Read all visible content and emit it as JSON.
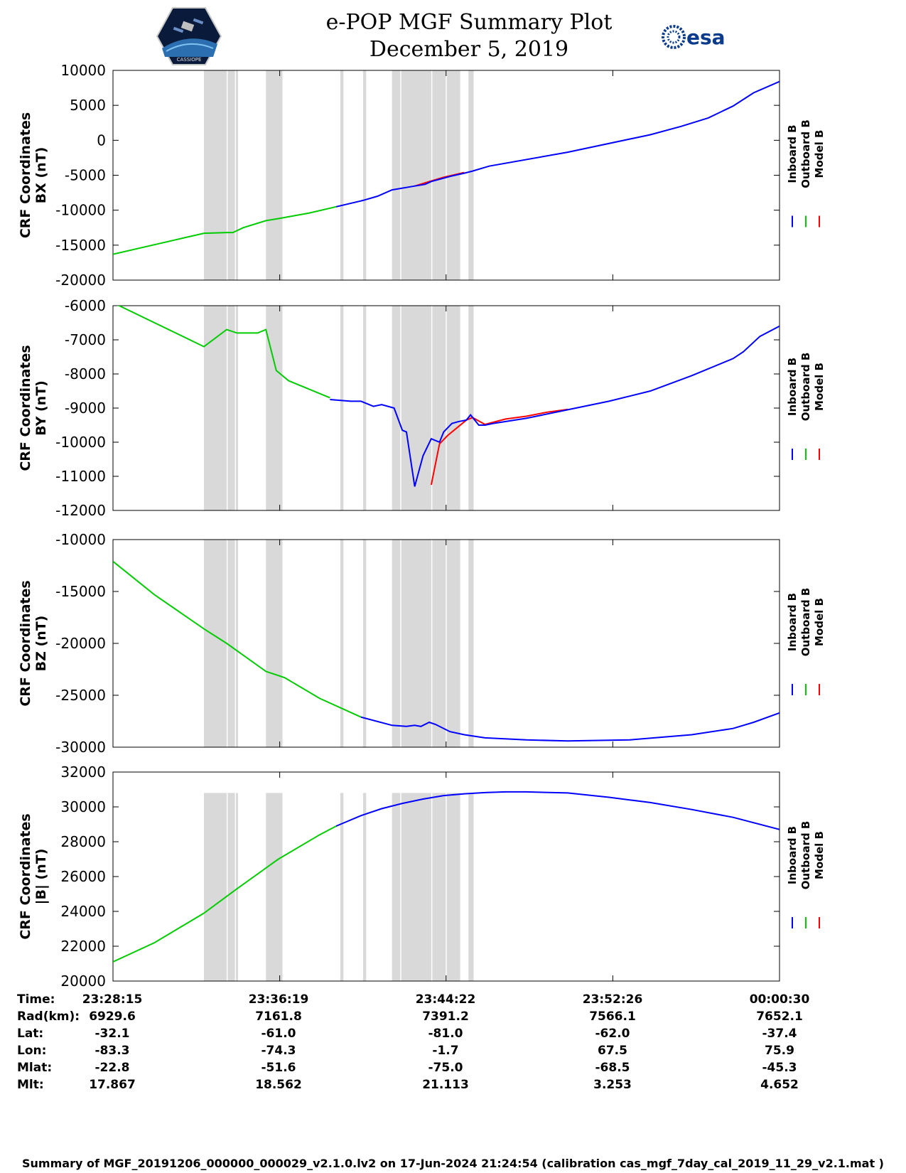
{
  "header": {
    "title_line1": "e-POP MGF Summary Plot",
    "title_line2": "December 5, 2019",
    "logo_left_text": "CASSIOPE",
    "logo_right_text": "esa"
  },
  "legend": [
    "Inboard B",
    "Outboard B",
    "Model B"
  ],
  "colors": {
    "inboard": "#0000ff",
    "outboard": "#00cc00",
    "model": "#ff0000",
    "data_gap": "#d9d9d9"
  },
  "x_axis": {
    "range_minutes": [
      0,
      32.25
    ],
    "tick_minutes": [
      0,
      8.067,
      16.117,
      24.183,
      32.25
    ]
  },
  "table": {
    "row_labels": [
      "Time:",
      "Rad(km):",
      "Lat:",
      "Lon:",
      "Mlat:",
      "Mlt:"
    ],
    "columns": [
      [
        "23:28:15",
        "6929.6",
        "-32.1",
        "-83.3",
        "-22.8",
        "17.867"
      ],
      [
        "23:36:19",
        "7161.8",
        "-61.0",
        "-74.3",
        "-51.6",
        "18.562"
      ],
      [
        "23:44:22",
        "7391.2",
        "-81.0",
        "-1.7",
        "-75.0",
        "21.113"
      ],
      [
        "23:52:26",
        "7566.1",
        "-62.0",
        "67.5",
        "-68.5",
        "3.253"
      ],
      [
        "00:00:30",
        "7652.1",
        "-37.4",
        "75.9",
        "-45.3",
        "4.652"
      ]
    ]
  },
  "footer": "Summary of MGF_20191206_000000_000029_v2.1.0.lv2 on 17-Jun-2024 21:24:54 (calibration cas_mgf_7day_cal_2019_11_29_v2.1.mat )",
  "chart_data": [
    {
      "type": "line",
      "title": "",
      "ylabel": "CRF Coordinates\nBX (nT)",
      "ylabel_lines": [
        "CRF Coordinates",
        "BX (nT)"
      ],
      "ylim": [
        -20000,
        10000
      ],
      "yticks": [
        10000,
        5000,
        0,
        -5000,
        -10000,
        -15000,
        -20000
      ],
      "ytick_labels": [
        "10000",
        "5000",
        "0",
        "-5000",
        "-10000",
        "-15000",
        "-20000"
      ],
      "gap_top": 10000,
      "outboard": {
        "x": [
          0,
          4.4,
          5.5,
          5.8,
          6.3,
          7.4,
          8.0,
          9.5,
          10.8
        ],
        "y": [
          -16300,
          -13300,
          -13200,
          -13200,
          -12500,
          -11500,
          -11200,
          -10400,
          -9500
        ]
      },
      "inboard": {
        "x": [
          10.8,
          12.1,
          12.8,
          13.5,
          14.5,
          15.1,
          15.4,
          16.4,
          17.0,
          17.4,
          18.2,
          22,
          26,
          27.5,
          28.8,
          30,
          31,
          32.25
        ],
        "y": [
          -9500,
          -8600,
          -8000,
          -7100,
          -6600,
          -6300,
          -5900,
          -5100,
          -4700,
          -4400,
          -3700,
          -1700,
          800,
          2000,
          3200,
          4900,
          6800,
          8400
        ]
      },
      "model": {
        "x": [
          14.6,
          15.2,
          16.0,
          17.0
        ],
        "y": [
          -6550,
          -6000,
          -5300,
          -4600
        ]
      }
    },
    {
      "type": "line",
      "title": "",
      "ylabel": "CRF Coordinates\nBY (nT)",
      "ylabel_lines": [
        "CRF Coordinates",
        "BY (nT)"
      ],
      "ylim": [
        -12000,
        -6000
      ],
      "yticks": [
        -6000,
        -7000,
        -8000,
        -9000,
        -10000,
        -11000,
        -12000
      ],
      "ytick_labels": [
        "-6000",
        "-7000",
        "-8000",
        "-9000",
        "-10000",
        "-11000",
        "-12000"
      ],
      "gap_top": -6000,
      "outboard": {
        "x": [
          0,
          0.3,
          4.4,
          5.5,
          6.0,
          7.0,
          7.4,
          7.9,
          8.5,
          9.5,
          10.5
        ],
        "y": [
          -5950,
          -6000,
          -7200,
          -6700,
          -6800,
          -6800,
          -6700,
          -7900,
          -8200,
          -8450,
          -8700
        ]
      },
      "inboard": {
        "x": [
          10.5,
          11.5,
          12.0,
          12.6,
          13.0,
          13.6,
          14.0,
          14.2,
          14.6,
          15.0,
          15.4,
          15.8,
          16.0,
          16.4,
          16.7,
          17.1,
          17.3,
          17.7,
          18.0,
          18.4,
          20,
          22,
          24,
          26,
          28,
          30,
          30.5,
          31.3,
          32.25
        ],
        "y": [
          -8750,
          -8800,
          -8800,
          -8950,
          -8900,
          -9000,
          -9650,
          -9700,
          -11300,
          -10400,
          -9900,
          -10000,
          -9700,
          -9450,
          -9400,
          -9350,
          -9200,
          -9500,
          -9500,
          -9450,
          -9300,
          -9050,
          -8800,
          -8500,
          -8050,
          -7550,
          -7350,
          -6900,
          -6600
        ]
      },
      "model": {
        "x": [
          15.4,
          15.8,
          16.2,
          17.1,
          17.4,
          18.0,
          19.0,
          20.0,
          21.0,
          22.0
        ],
        "y": [
          -11250,
          -10050,
          -9800,
          -9350,
          -9280,
          -9480,
          -9320,
          -9240,
          -9120,
          -9040
        ]
      }
    },
    {
      "type": "line",
      "title": "",
      "ylabel": "CRF Coordinates\nBZ (nT)",
      "ylabel_lines": [
        "CRF Coordinates",
        "BZ (nT)"
      ],
      "ylim": [
        -30000,
        -10000
      ],
      "yticks": [
        -10000,
        -15000,
        -20000,
        -25000,
        -30000
      ],
      "ytick_labels": [
        "-10000",
        "-15000",
        "-20000",
        "-25000",
        "-30000"
      ],
      "gap_top": -10000,
      "outboard": {
        "x": [
          0,
          2.0,
          4.4,
          5.5,
          7.4,
          8.3,
          10.0,
          12.0
        ],
        "y": [
          -12100,
          -15300,
          -18600,
          -20000,
          -22700,
          -23300,
          -25300,
          -27100
        ]
      },
      "inboard": {
        "x": [
          12.0,
          13.5,
          14.2,
          14.6,
          14.9,
          15.3,
          15.6,
          16.3,
          17.0,
          18.0,
          20.0,
          22.0,
          25.0,
          28.0,
          30.0,
          31.0,
          32.25
        ],
        "y": [
          -27100,
          -27900,
          -28000,
          -27900,
          -28000,
          -27600,
          -27800,
          -28500,
          -28800,
          -29100,
          -29300,
          -29400,
          -29300,
          -28800,
          -28200,
          -27600,
          -26700
        ]
      },
      "model": {
        "x": [],
        "y": []
      }
    },
    {
      "type": "line",
      "title": "",
      "ylabel": "CRF Coordinates\n|B| (nT)",
      "ylabel_lines": [
        "CRF Coordinates",
        "|B| (nT)"
      ],
      "ylim": [
        20000,
        32000
      ],
      "yticks": [
        32000,
        30000,
        28000,
        26000,
        24000,
        22000,
        20000
      ],
      "ytick_labels": [
        "32000",
        "30000",
        "28000",
        "26000",
        "24000",
        "22000",
        "20000"
      ],
      "gap_top": 30800,
      "outboard": {
        "x": [
          0,
          2.0,
          4.4,
          6.0,
          8.0,
          10.0,
          10.8
        ],
        "y": [
          21100,
          22200,
          23900,
          25300,
          27000,
          28400,
          28900
        ]
      },
      "inboard": {
        "x": [
          10.8,
          12.0,
          13.0,
          14.0,
          15.0,
          16.0,
          17.0,
          18.0,
          19.0,
          20.0,
          22.0,
          24.0,
          26.0,
          28.0,
          30.0,
          32.25
        ],
        "y": [
          28900,
          29500,
          29900,
          30200,
          30450,
          30650,
          30750,
          30820,
          30860,
          30860,
          30800,
          30550,
          30250,
          29850,
          29400,
          28700
        ]
      },
      "model": {
        "x": [],
        "y": []
      }
    }
  ],
  "data_gaps_minutes": [
    [
      4.4,
      5.5
    ],
    [
      5.55,
      5.9
    ],
    [
      5.95,
      6.05
    ],
    [
      7.4,
      8.2
    ],
    [
      11.0,
      11.15
    ],
    [
      12.1,
      12.25
    ],
    [
      13.5,
      13.9
    ],
    [
      13.95,
      15.4
    ],
    [
      15.45,
      16.1
    ],
    [
      16.15,
      16.8
    ],
    [
      17.2,
      17.45
    ]
  ]
}
